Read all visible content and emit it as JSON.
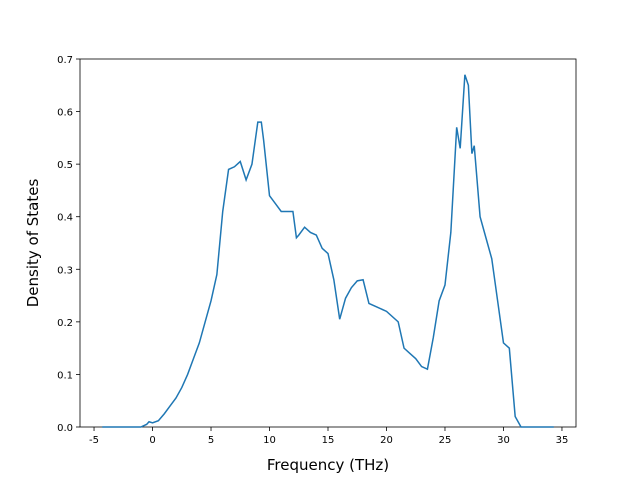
{
  "chart_data": {
    "type": "line",
    "xlabel": "Frequency (THz)",
    "ylabel": "Density of States",
    "x": [
      -4.3,
      -1,
      -0.5,
      -0.3,
      0,
      0.5,
      1,
      1.5,
      2,
      2.5,
      3,
      3.5,
      4,
      4.5,
      5,
      5.5,
      6,
      6.5,
      7,
      7.5,
      8,
      8.5,
      9,
      9.3,
      9.5,
      10,
      10.5,
      11,
      11.5,
      12,
      12.3,
      12.5,
      13,
      13.5,
      14,
      14.5,
      15,
      15.5,
      16,
      16.5,
      17,
      17.5,
      18,
      18.5,
      19,
      20,
      21,
      21.5,
      22,
      22.5,
      23,
      23.5,
      24,
      24.5,
      25,
      25.5,
      26,
      26.3,
      26.7,
      27,
      27.3,
      27.5,
      28,
      28.5,
      29,
      29.5,
      30,
      30.5,
      31,
      31.5,
      34.3
    ],
    "values": [
      0,
      0,
      0.005,
      0.01,
      0.008,
      0.012,
      0.025,
      0.04,
      0.055,
      0.075,
      0.1,
      0.13,
      0.16,
      0.2,
      0.24,
      0.29,
      0.41,
      0.49,
      0.495,
      0.505,
      0.47,
      0.5,
      0.58,
      0.58,
      0.545,
      0.44,
      0.425,
      0.41,
      0.41,
      0.41,
      0.36,
      0.365,
      0.38,
      0.37,
      0.365,
      0.34,
      0.33,
      0.28,
      0.205,
      0.245,
      0.265,
      0.278,
      0.28,
      0.235,
      0.23,
      0.22,
      0.2,
      0.15,
      0.14,
      0.13,
      0.115,
      0.11,
      0.17,
      0.24,
      0.27,
      0.37,
      0.57,
      0.53,
      0.67,
      0.65,
      0.52,
      0.535,
      0.4,
      0.36,
      0.32,
      0.24,
      0.16,
      0.15,
      0.02,
      0,
      0
    ],
    "color": "#1f77b4",
    "xlim": [
      -6.2,
      36.2
    ],
    "xticks": [
      -5,
      0,
      5,
      10,
      15,
      20,
      25,
      30,
      35
    ],
    "ylim": [
      0,
      0.7
    ],
    "yticks": [
      0.0,
      0.1,
      0.2,
      0.3,
      0.4,
      0.5,
      0.6,
      0.7
    ]
  }
}
